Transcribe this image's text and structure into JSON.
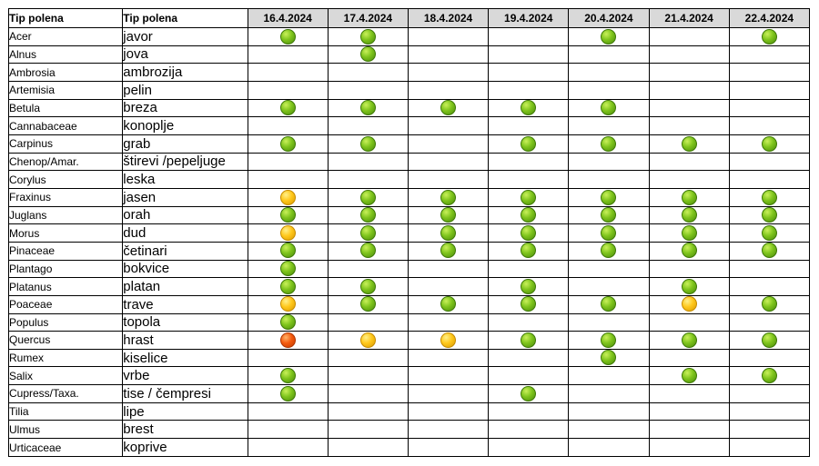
{
  "table": {
    "header_latin": "Tip polena",
    "header_local": "Tip polena",
    "dates": [
      "16.4.2024",
      "17.4.2024",
      "18.4.2024",
      "19.4.2024",
      "20.4.2024",
      "21.4.2024",
      "22.4.2024"
    ],
    "level_colors": {
      "low": "#7ec41c",
      "moderate": "#ffc81c",
      "high": "#f45a0e"
    },
    "rows": [
      {
        "latin": "Acer",
        "local": "javor",
        "levels": [
          "low",
          "low",
          "",
          "",
          "low",
          "",
          "low"
        ]
      },
      {
        "latin": "Alnus",
        "local": "jova",
        "levels": [
          "",
          "low",
          "",
          "",
          "",
          "",
          ""
        ]
      },
      {
        "latin": "Ambrosia",
        "local": "ambrozija",
        "levels": [
          "",
          "",
          "",
          "",
          "",
          "",
          ""
        ]
      },
      {
        "latin": "Artemisia",
        "local": "pelin",
        "levels": [
          "",
          "",
          "",
          "",
          "",
          "",
          ""
        ]
      },
      {
        "latin": "Betula",
        "local": "breza",
        "levels": [
          "low",
          "low",
          "low",
          "low",
          "low",
          "",
          ""
        ]
      },
      {
        "latin": "Cannabaceae",
        "local": "konoplje",
        "levels": [
          "",
          "",
          "",
          "",
          "",
          "",
          ""
        ]
      },
      {
        "latin": "Carpinus",
        "local": "grab",
        "levels": [
          "low",
          "low",
          "",
          "low",
          "low",
          "low",
          "low"
        ]
      },
      {
        "latin": "Chenop/Amar.",
        "local": "štirevi /pepeljuge",
        "levels": [
          "",
          "",
          "",
          "",
          "",
          "",
          ""
        ]
      },
      {
        "latin": "Corylus",
        "local": "leska",
        "levels": [
          "",
          "",
          "",
          "",
          "",
          "",
          ""
        ]
      },
      {
        "latin": "Fraxinus",
        "local": "jasen",
        "levels": [
          "moderate",
          "low",
          "low",
          "low",
          "low",
          "low",
          "low"
        ]
      },
      {
        "latin": "Juglans",
        "local": "orah",
        "levels": [
          "low",
          "low",
          "low",
          "low",
          "low",
          "low",
          "low"
        ]
      },
      {
        "latin": "Morus",
        "local": "dud",
        "levels": [
          "moderate",
          "low",
          "low",
          "low",
          "low",
          "low",
          "low"
        ]
      },
      {
        "latin": "Pinaceae",
        "local": "četinari",
        "levels": [
          "low",
          "low",
          "low",
          "low",
          "low",
          "low",
          "low"
        ]
      },
      {
        "latin": "Plantago",
        "local": "bokvice",
        "levels": [
          "low",
          "",
          "",
          "",
          "",
          "",
          ""
        ]
      },
      {
        "latin": "Platanus",
        "local": "platan",
        "levels": [
          "low",
          "low",
          "",
          "low",
          "",
          "low",
          ""
        ]
      },
      {
        "latin": "Poaceae",
        "local": "trave",
        "levels": [
          "moderate",
          "low",
          "low",
          "low",
          "low",
          "moderate",
          "low"
        ]
      },
      {
        "latin": "Populus",
        "local": "topola",
        "levels": [
          "low",
          "",
          "",
          "",
          "",
          "",
          ""
        ]
      },
      {
        "latin": "Quercus",
        "local": "hrast",
        "levels": [
          "high",
          "moderate",
          "moderate",
          "low",
          "low",
          "low",
          "low"
        ]
      },
      {
        "latin": "Rumex",
        "local": "kiselice",
        "levels": [
          "",
          "",
          "",
          "",
          "low",
          "",
          ""
        ]
      },
      {
        "latin": "Salix",
        "local": "vrbe",
        "levels": [
          "low",
          "",
          "",
          "",
          "",
          "low",
          "low"
        ]
      },
      {
        "latin": "Cupress/Taxa.",
        "local": "tise / čempresi",
        "levels": [
          "low",
          "",
          "",
          "low",
          "",
          "",
          ""
        ]
      },
      {
        "latin": "Tilia",
        "local": "lipe",
        "levels": [
          "",
          "",
          "",
          "",
          "",
          "",
          ""
        ]
      },
      {
        "latin": "Ulmus",
        "local": "brest",
        "levels": [
          "",
          "",
          "",
          "",
          "",
          "",
          ""
        ]
      },
      {
        "latin": "Urticaceae",
        "local": "koprive",
        "levels": [
          "",
          "",
          "",
          "",
          "",
          "",
          ""
        ]
      }
    ]
  }
}
